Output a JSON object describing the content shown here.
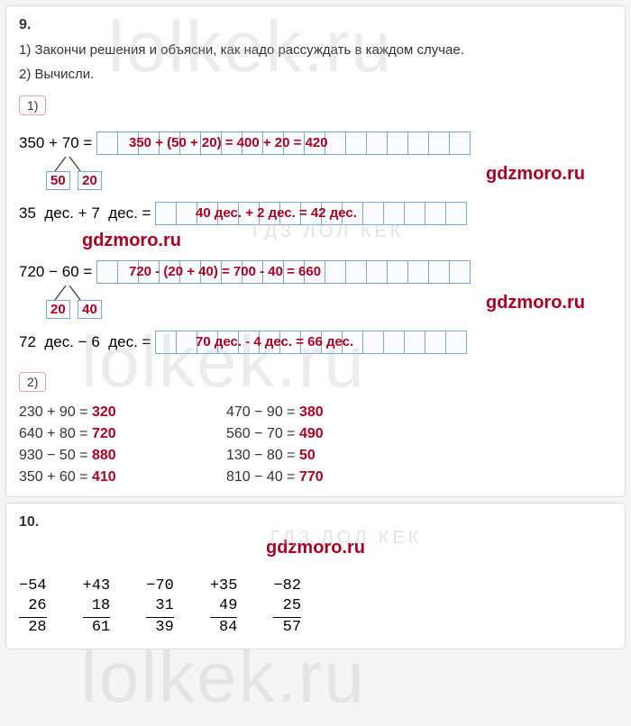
{
  "watermarks": {
    "big": "lolkek.ru",
    "small": "ГДЗ ЛОЛ КЕК"
  },
  "ex9": {
    "num": "9.",
    "instr1": "1) Закончи решения и объясни, как надо рассуждать в каждом случае.",
    "instr2": "2) Вычисли.",
    "badge1": "1)",
    "badge2": "2)",
    "site": "gdzmoro.ru",
    "row1": {
      "lhs": "350 + 70 =",
      "ans": "350 + (50 + 20) = 400 + 20 = 420",
      "b1": "50",
      "b2": "20",
      "cells": 18
    },
    "row2": {
      "lhs": "35  дес. + 7  дес. =",
      "ans": "40 дес. + 2 дес. = 42 дес.",
      "cells": 15
    },
    "row3": {
      "lhs": "720 − 60 =",
      "ans": "720 - (20 + 40) = 700 - 40 = 660",
      "b1": "20",
      "b2": "40",
      "cells": 18
    },
    "row4": {
      "lhs": "72  дес. − 6  дес. =",
      "ans": "70 дес. - 4 дес. = 66 дес.",
      "cells": 15
    },
    "part2": [
      {
        "lhs": "230 + 90 =",
        "ans": "320"
      },
      {
        "lhs": "470 − 90 =",
        "ans": "380"
      },
      {
        "lhs": "640 + 80 =",
        "ans": "720"
      },
      {
        "lhs": "560 − 70 =",
        "ans": "490"
      },
      {
        "lhs": "930 − 50 =",
        "ans": "880"
      },
      {
        "lhs": "130 − 80 =",
        "ans": "50"
      },
      {
        "lhs": "350 + 60 =",
        "ans": "410"
      },
      {
        "lhs": "810 − 40 =",
        "ans": "770"
      }
    ]
  },
  "ex10": {
    "num": "10.",
    "site": "gdzmoro.ru",
    "probs": [
      {
        "op": "−",
        "a": "54",
        "b": "26",
        "r": "28"
      },
      {
        "op": "+",
        "a": "43",
        "b": "18",
        "r": "61"
      },
      {
        "op": "−",
        "a": "70",
        "b": "31",
        "r": "39"
      },
      {
        "op": "+",
        "a": "35",
        "b": "49",
        "r": "84"
      },
      {
        "op": "−",
        "a": "82",
        "b": "25",
        "r": "57"
      }
    ]
  },
  "colors": {
    "answer": "#b00020",
    "grid_border": "#7aa8d4",
    "text": "#333333",
    "background": "#ffffff"
  }
}
